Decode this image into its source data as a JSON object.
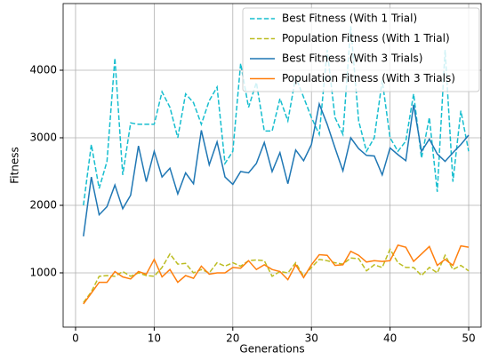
{
  "chart_data": {
    "type": "line",
    "x_label": "Generations",
    "y_label": "Fitness",
    "x": [
      1,
      2,
      3,
      4,
      5,
      6,
      7,
      8,
      9,
      10,
      11,
      12,
      13,
      14,
      15,
      16,
      17,
      18,
      19,
      20,
      21,
      22,
      23,
      24,
      25,
      26,
      27,
      28,
      29,
      30,
      31,
      32,
      33,
      34,
      35,
      36,
      37,
      38,
      39,
      40,
      41,
      42,
      43,
      44,
      45,
      46,
      47,
      48,
      49,
      50
    ],
    "series": [
      {
        "name": "Best Fitness (With 1 Trial)",
        "color": "#17becf",
        "linestyle": "dashed",
        "values": [
          2000,
          2900,
          2250,
          2650,
          4180,
          2450,
          3220,
          3200,
          3200,
          3200,
          3680,
          3450,
          3000,
          3650,
          3520,
          3200,
          3550,
          3750,
          2620,
          2800,
          4100,
          3450,
          3820,
          3100,
          3100,
          3580,
          3250,
          3900,
          3600,
          3300,
          3050,
          4300,
          3300,
          3050,
          4650,
          3250,
          2800,
          3000,
          3850,
          3000,
          2800,
          2950,
          3650,
          2700,
          3300,
          2200,
          4300,
          2350,
          3400,
          2800
        ]
      },
      {
        "name": "Population Fitness (With 1 Trial)",
        "color": "#bcbd22",
        "linestyle": "dashed",
        "values": [
          560,
          720,
          950,
          960,
          950,
          1020,
          950,
          1000,
          960,
          950,
          1080,
          1280,
          1130,
          1140,
          1000,
          1050,
          1000,
          1150,
          1100,
          1150,
          1100,
          1180,
          1190,
          1180,
          950,
          1020,
          1000,
          1150,
          950,
          1080,
          1200,
          1180,
          1150,
          1130,
          1220,
          1210,
          1030,
          1120,
          1080,
          1350,
          1150,
          1080,
          1080,
          960,
          1080,
          1000,
          1260,
          1050,
          1110,
          1030
        ]
      },
      {
        "name": "Best Fitness (With 3 Trials)",
        "color": "#1f77b4",
        "linestyle": "solid",
        "values": [
          1540,
          2420,
          1860,
          1980,
          2300,
          1950,
          2150,
          2880,
          2350,
          2800,
          2420,
          2550,
          2170,
          2480,
          2320,
          3110,
          2600,
          2940,
          2420,
          2310,
          2500,
          2480,
          2620,
          2930,
          2500,
          2780,
          2320,
          2820,
          2660,
          2900,
          3500,
          3200,
          2850,
          2510,
          3000,
          2840,
          2740,
          2730,
          2450,
          2850,
          2750,
          2660,
          3490,
          2800,
          2980,
          2760,
          2650,
          2780,
          2900,
          3040
        ]
      },
      {
        "name": "Population Fitness (With 3 Trials)",
        "color": "#ff7f0e",
        "linestyle": "solid",
        "values": [
          540,
          700,
          860,
          860,
          1020,
          940,
          910,
          1020,
          980,
          1200,
          940,
          1050,
          860,
          960,
          920,
          1100,
          980,
          1000,
          1000,
          1080,
          1070,
          1180,
          1050,
          1120,
          1050,
          1020,
          900,
          1120,
          930,
          1120,
          1270,
          1260,
          1110,
          1120,
          1320,
          1260,
          1160,
          1180,
          1170,
          1180,
          1410,
          1380,
          1170,
          1280,
          1390,
          1110,
          1200,
          1110,
          1400,
          1380
        ]
      }
    ],
    "xlim": [
      -1.58,
      51.58
    ],
    "ylim": [
      197,
      4987
    ],
    "xticks": [
      0,
      10,
      20,
      30,
      40,
      50
    ],
    "yticks": [
      1000,
      2000,
      3000,
      4000
    ],
    "grid": true,
    "legend": "upper right"
  }
}
